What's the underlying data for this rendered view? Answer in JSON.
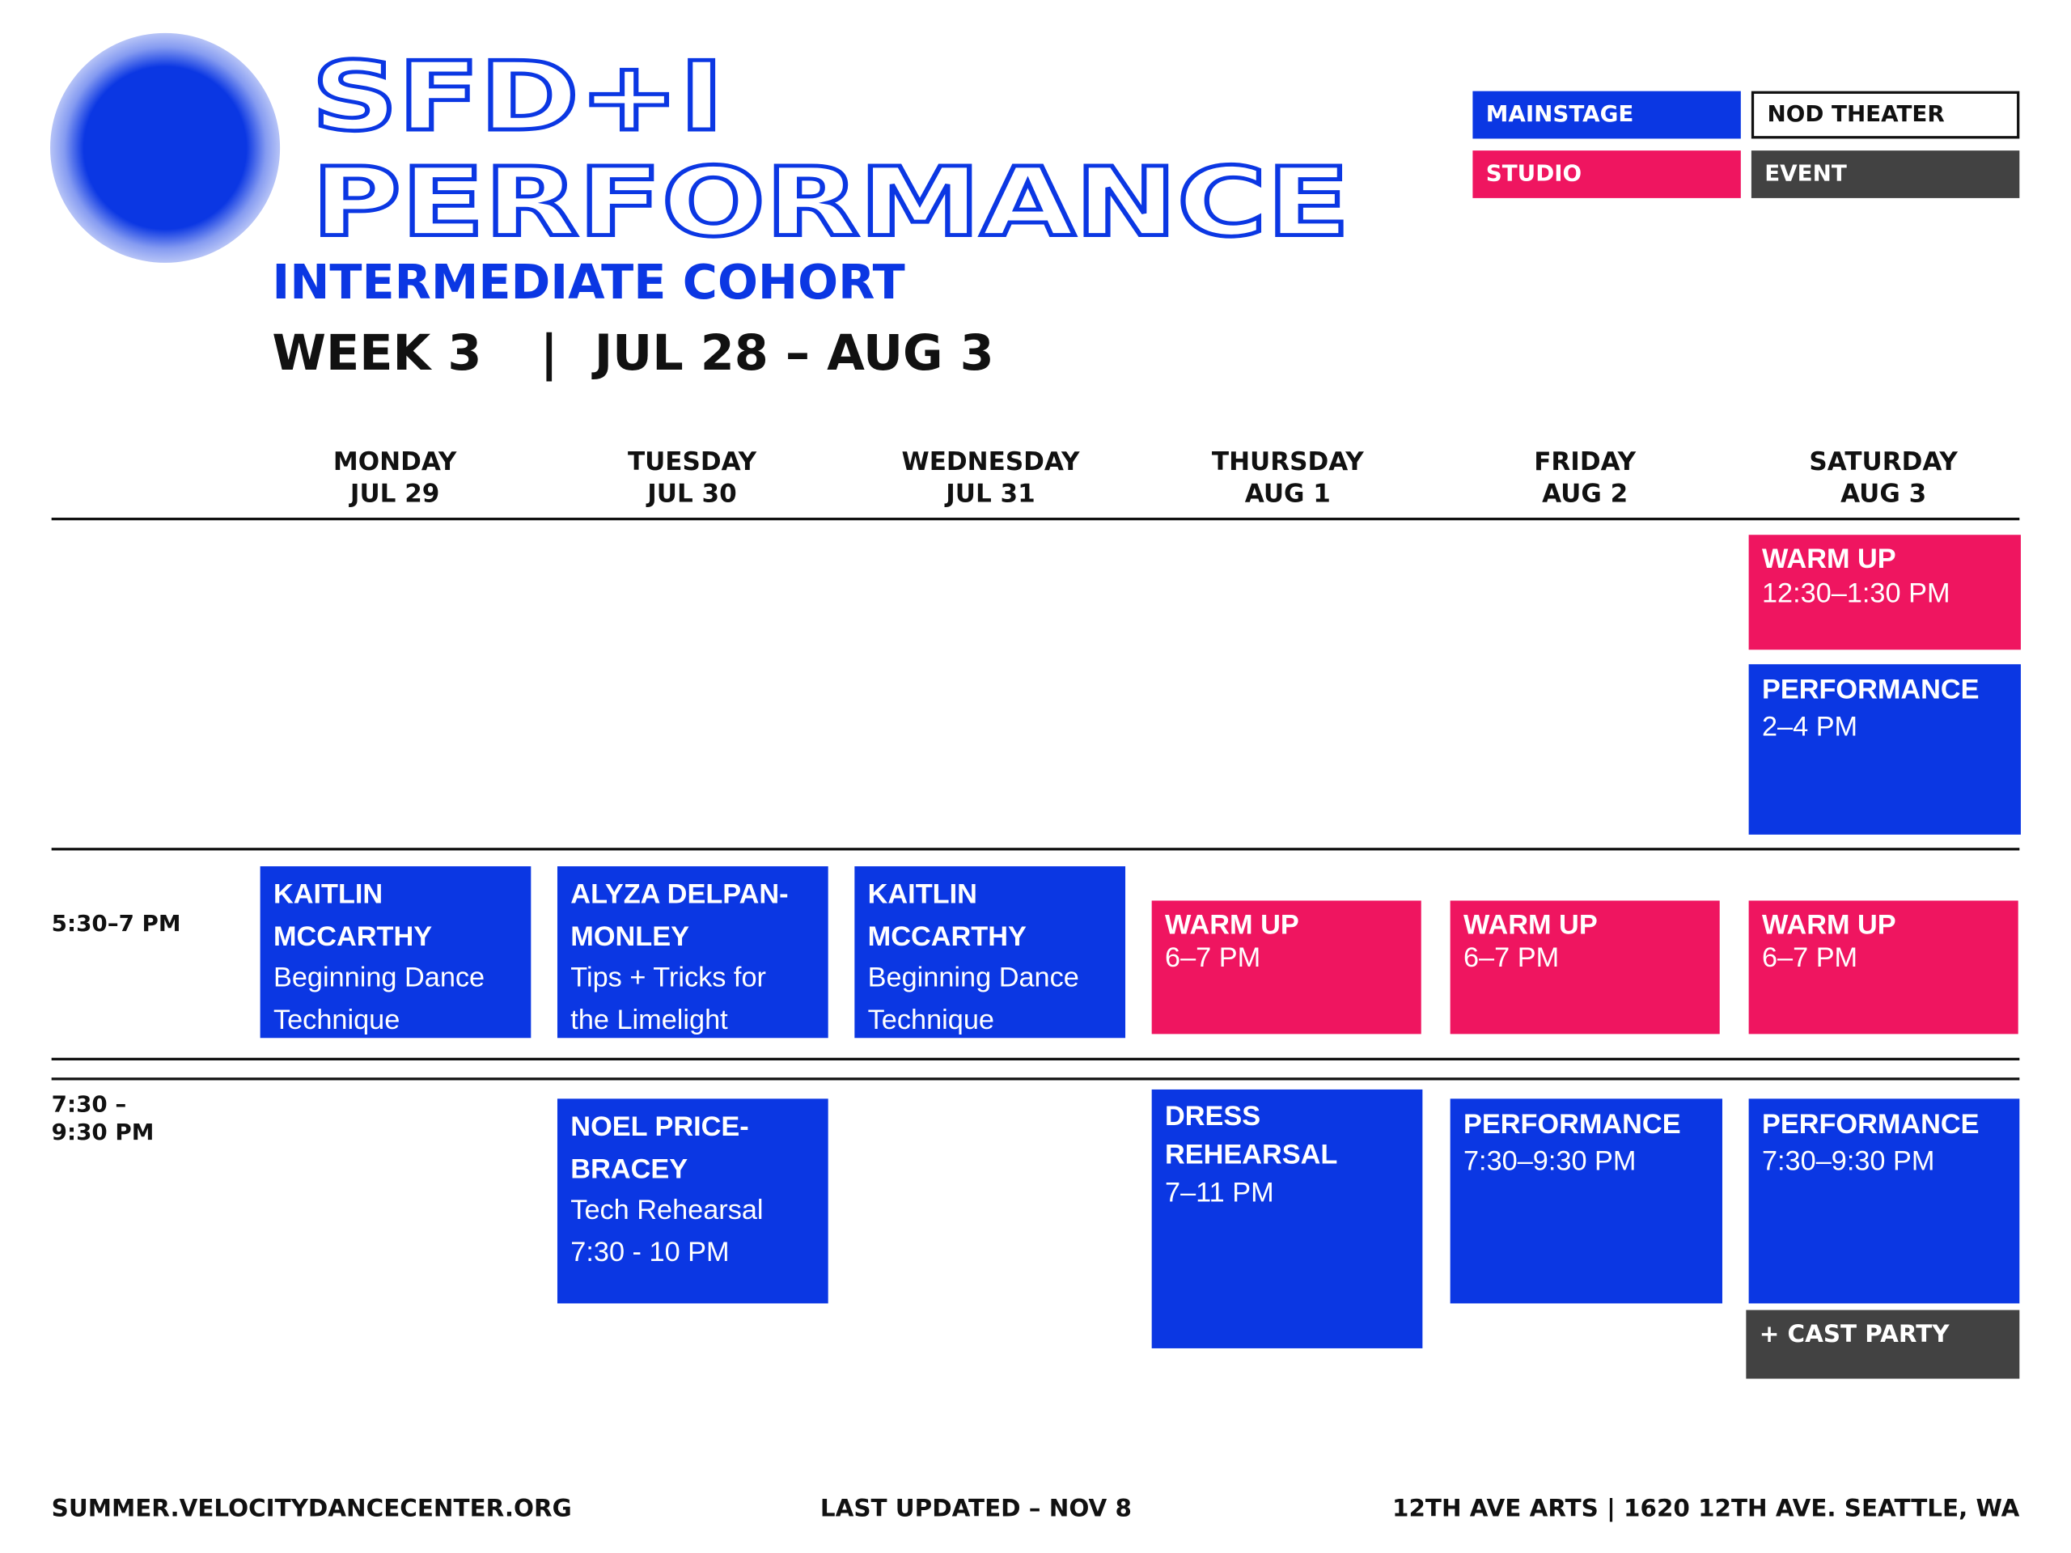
{
  "header": {
    "title": [
      "SFD+I",
      "PERFORMANCE"
    ],
    "subtitle": "INTERMEDIATE COHORT",
    "week": "WEEK 3",
    "dates": "JUL 28 – AUG 3"
  },
  "legend": [
    "MAINSTAGE",
    "NOD THEATER",
    "STUDIO",
    "EVENT"
  ],
  "days": [
    {
      "day": "MONDAY",
      "date": "JUL 29"
    },
    {
      "day": "TUESDAY",
      "date": "JUL 30"
    },
    {
      "day": "WEDNESDAY",
      "date": "JUL 31"
    },
    {
      "day": "THURSDAY",
      "date": "AUG 1"
    },
    {
      "day": "FRIDAY",
      "date": "AUG 2"
    },
    {
      "day": "SATURDAY",
      "date": "AUG 3"
    }
  ],
  "times": [
    [
      "5:30–7 PM"
    ],
    [
      "7:30 –",
      "9:30 PM"
    ]
  ],
  "events": [
    {
      "title": [
        "WARM UP"
      ],
      "details": [
        "12:30–1:30 PM"
      ]
    },
    {
      "title": [
        "PERFORMANCE"
      ],
      "details": [
        "2–4 PM"
      ]
    },
    {
      "title": [
        "KAITLIN",
        "MCCARTHY"
      ],
      "details": [
        "Beginning Dance",
        "Technique"
      ]
    },
    {
      "title": [
        "ALYZA DELPAN-",
        "MONLEY"
      ],
      "details": [
        "Tips + Tricks for",
        "the Limelight"
      ]
    },
    {
      "title": [
        "KAITLIN",
        "MCCARTHY"
      ],
      "details": [
        "Beginning Dance",
        "Technique"
      ]
    },
    {
      "title": [
        "WARM UP"
      ],
      "details": [
        "6–7 PM"
      ]
    },
    {
      "title": [
        "WARM UP"
      ],
      "details": [
        "6–7 PM"
      ]
    },
    {
      "title": [
        "WARM UP"
      ],
      "details": [
        "6–7 PM"
      ]
    },
    {
      "title": [
        "NOEL PRICE-",
        "BRACEY"
      ],
      "details": [
        "Tech Rehearsal",
        "7:30 - 10 PM"
      ]
    },
    {
      "title": [
        "DRESS",
        "REHEARSAL"
      ],
      "details": [
        "7–11 PM"
      ]
    },
    {
      "title": [
        "PERFORMANCE"
      ],
      "details": [
        "7:30–9:30 PM"
      ]
    },
    {
      "title": [
        "PERFORMANCE"
      ],
      "details": [
        "7:30–9:30 PM"
      ]
    },
    {
      "title": [
        "+ CAST PARTY"
      ],
      "details": []
    }
  ],
  "footer": [
    "SUMMER.VELOCITYDANCECENTER.ORG",
    "LAST UPDATED – NOV 8",
    "12TH AVE ARTS | 1620 12TH AVE. SEATTLE, WA"
  ]
}
